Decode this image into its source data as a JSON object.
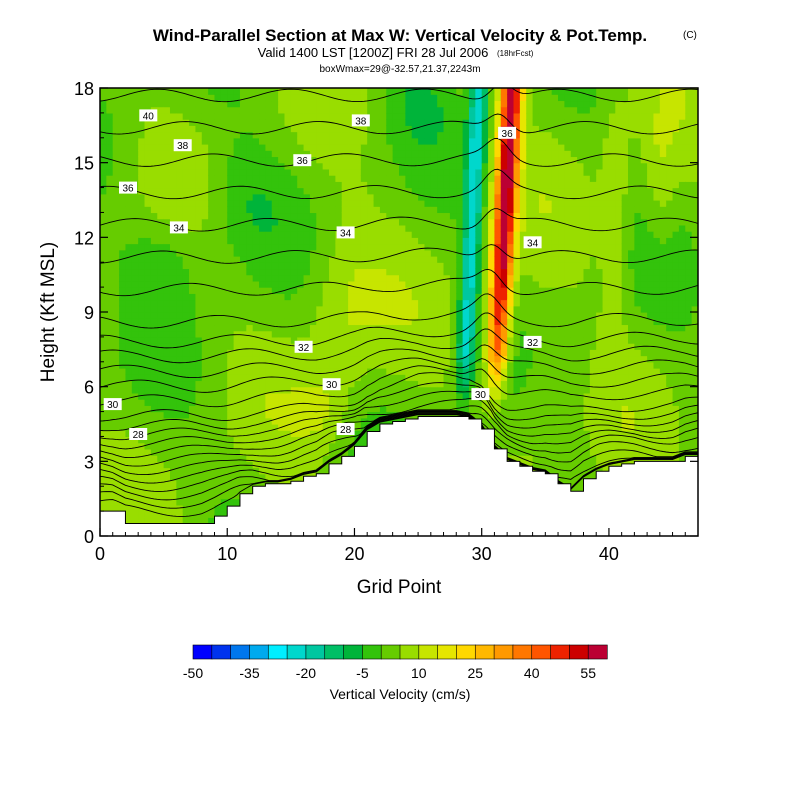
{
  "chart_data": {
    "type": "contour",
    "title": "Wind-Parallel Section at Max W: Vertical Velocity & Pot.Temp.",
    "copyright": "(C)",
    "subtitle": "Valid 1400 LST [1200Z] FRI 28 Jul 2006",
    "forecast_note": "(18hrFcst)",
    "box_info": "boxWmax=29@-32.57,21.37,2243m",
    "xlabel": "Grid Point",
    "ylabel": "Height (Kft MSL)",
    "xlim": [
      0,
      47
    ],
    "ylim": [
      0,
      18
    ],
    "x_ticks": [
      0,
      10,
      20,
      30,
      40
    ],
    "y_ticks": [
      0,
      3,
      6,
      9,
      12,
      15,
      18
    ],
    "colorbar": {
      "label": "Vertical Velocity (cm/s)",
      "tick_labels": [
        "-50",
        "-35",
        "-20",
        "-5",
        "10",
        "25",
        "40",
        "55"
      ],
      "tick_values": [
        -50,
        -35,
        -20,
        -5,
        10,
        25,
        40,
        55
      ],
      "min": -50,
      "step": 5,
      "colors": [
        "#0000ff",
        "#0033ee",
        "#0077ee",
        "#00aaee",
        "#00eeff",
        "#00d7cc",
        "#00c7a0",
        "#00bf66",
        "#00b43a",
        "#33c30b",
        "#66cc00",
        "#99dd00",
        "#c7e500",
        "#e6e600",
        "#ffd800",
        "#ffb800",
        "#ff9900",
        "#ff7700",
        "#ff5500",
        "#ee2200",
        "#cc0000",
        "#bb0033"
      ]
    },
    "terrain_kft": [
      1,
      1,
      0.5,
      0.5,
      0.5,
      0.5,
      0.5,
      0.5,
      0.5,
      0.8,
      1.2,
      1.7,
      2.0,
      2.1,
      2.1,
      2.2,
      2.4,
      2.5,
      2.9,
      3.2,
      3.6,
      4.2,
      4.5,
      4.6,
      4.7,
      4.8,
      4.8,
      4.8,
      4.8,
      4.7,
      4.3,
      3.5,
      3.0,
      2.8,
      2.6,
      2.5,
      2.1,
      1.8,
      2.3,
      2.6,
      2.8,
      2.9,
      3.0,
      3.0,
      3.0,
      3.0,
      3.2,
      3.2
    ],
    "updraft": {
      "center_x": 31.5,
      "peak_w_cm_s": 58
    },
    "downdraft": {
      "center_x": 29,
      "min_w_cm_s": -22
    },
    "contour_labels": [
      {
        "x": 3.8,
        "y": 16.9,
        "text": "40"
      },
      {
        "x": 6.5,
        "y": 15.7,
        "text": "38"
      },
      {
        "x": 20.5,
        "y": 16.7,
        "text": "38"
      },
      {
        "x": 2.2,
        "y": 14.0,
        "text": "36"
      },
      {
        "x": 15.9,
        "y": 15.1,
        "text": "36"
      },
      {
        "x": 32.0,
        "y": 16.2,
        "text": "36"
      },
      {
        "x": 6.2,
        "y": 12.4,
        "text": "34"
      },
      {
        "x": 19.3,
        "y": 12.2,
        "text": "34"
      },
      {
        "x": 34.0,
        "y": 11.8,
        "text": "34"
      },
      {
        "x": 16.0,
        "y": 7.6,
        "text": "32"
      },
      {
        "x": 34.0,
        "y": 7.8,
        "text": "32"
      },
      {
        "x": 18.2,
        "y": 6.1,
        "text": "30"
      },
      {
        "x": 1.0,
        "y": 5.3,
        "text": "30"
      },
      {
        "x": 29.9,
        "y": 5.7,
        "text": "30"
      },
      {
        "x": 3.0,
        "y": 4.1,
        "text": "28"
      },
      {
        "x": 19.3,
        "y": 4.3,
        "text": "28"
      }
    ]
  }
}
